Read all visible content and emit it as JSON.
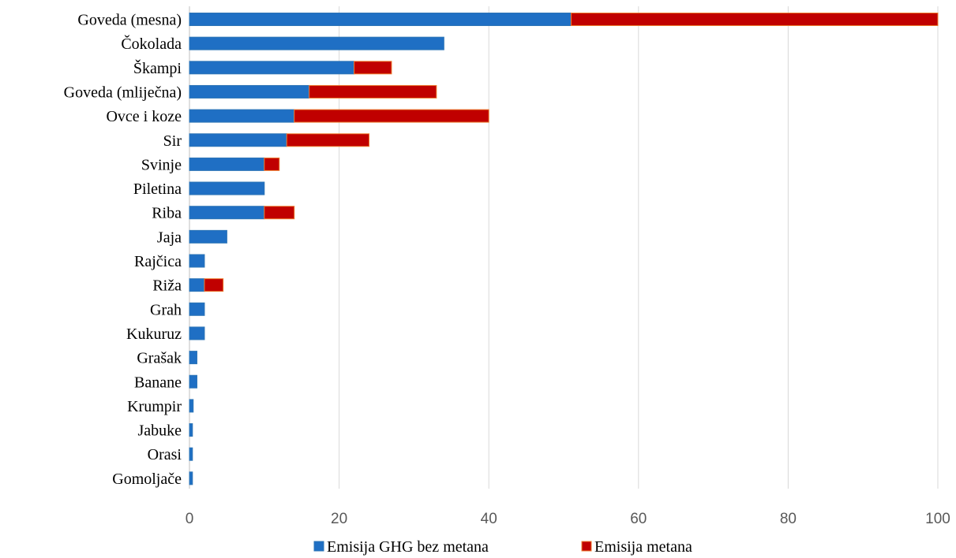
{
  "chart_data": {
    "type": "bar",
    "orientation": "horizontal",
    "stacked": true,
    "title": "",
    "xlabel": "",
    "ylabel": "",
    "xlim": [
      0,
      100
    ],
    "x_ticks": [
      "0",
      "20",
      "40",
      "60",
      "80",
      "100"
    ],
    "grid": "vertical",
    "legend_position": "bottom",
    "categories": [
      "Goveda (mesna)",
      "Čokolada",
      "Škampi",
      "Goveda (mliječna)",
      "Ovce i koze",
      "Sir",
      "Svinje",
      "Piletina",
      "Riba",
      "Jaja",
      "Rajčica",
      "Riža",
      "Grah",
      "Kukuruz",
      "Grašak",
      "Banane",
      "Krumpir",
      "Jabuke",
      "Orasi",
      "Gomoljače"
    ],
    "series": [
      {
        "name": "Emisija GHG bez metana",
        "color": "#1f6fc4",
        "values": [
          51,
          34,
          22,
          16,
          14,
          13,
          10,
          10,
          10,
          5,
          2,
          2,
          2,
          2,
          1,
          1,
          0.5,
          0.4,
          0.4,
          0.4
        ]
      },
      {
        "name": "Emisija metana",
        "color": "#c00000",
        "values": [
          49,
          0,
          5,
          17,
          26,
          11,
          2,
          0,
          4,
          0,
          0,
          2.5,
          0,
          0,
          0,
          0,
          0,
          0,
          0,
          0
        ]
      }
    ]
  }
}
